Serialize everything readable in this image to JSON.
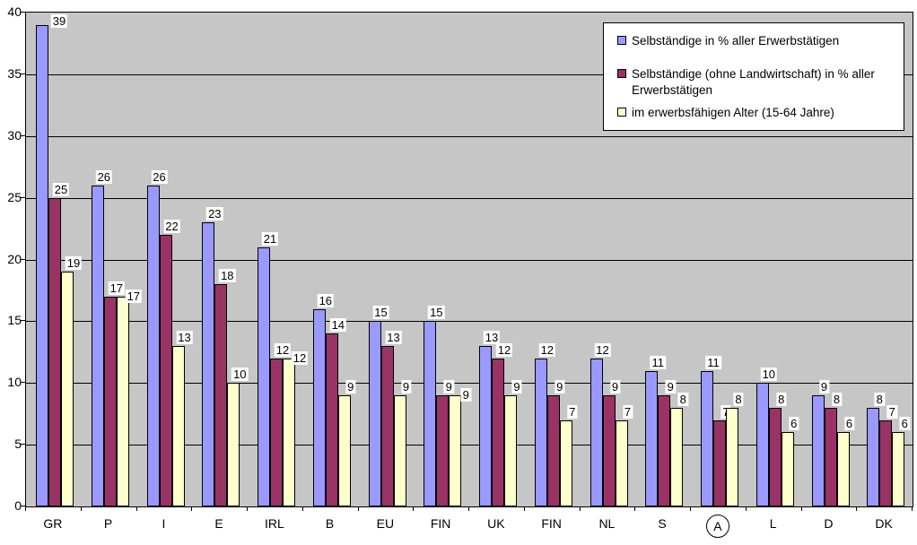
{
  "chart_data": {
    "type": "bar",
    "categories": [
      "GR",
      "P",
      "I",
      "E",
      "IRL",
      "B",
      "EU",
      "FIN",
      "UK",
      "FIN",
      "NL",
      "S",
      "A",
      "L",
      "D",
      "DK"
    ],
    "circled_category_index": 12,
    "series": [
      {
        "name": "Selbständige in % aller Erwerbstätigen",
        "color": "#9999FF",
        "values": [
          39,
          26,
          26,
          23,
          21,
          16,
          15,
          15,
          13,
          12,
          12,
          11,
          11,
          10,
          9,
          8
        ]
      },
      {
        "name": "Selbständige (ohne Landwirtschaft) in % aller Erwerbstätigen",
        "color": "#993366",
        "values": [
          25,
          17,
          22,
          18,
          12,
          14,
          13,
          9,
          12,
          9,
          9,
          9,
          7,
          8,
          8,
          7
        ]
      },
      {
        "name": "im erwerbsfähigen Alter (15-64 Jahre)",
        "color": "#FFFFCC",
        "values": [
          19,
          17,
          13,
          10,
          12,
          9,
          9,
          9,
          9,
          7,
          7,
          8,
          8,
          6,
          6,
          6
        ]
      }
    ],
    "y_ticks": [
      0,
      5,
      10,
      15,
      20,
      25,
      30,
      35,
      40
    ],
    "ylim": [
      0,
      40
    ],
    "grid": true,
    "data_labels": true,
    "legend_position": "top-right",
    "plot_bg_color": "#C6C6C6",
    "bar_border_color": "#000000"
  }
}
